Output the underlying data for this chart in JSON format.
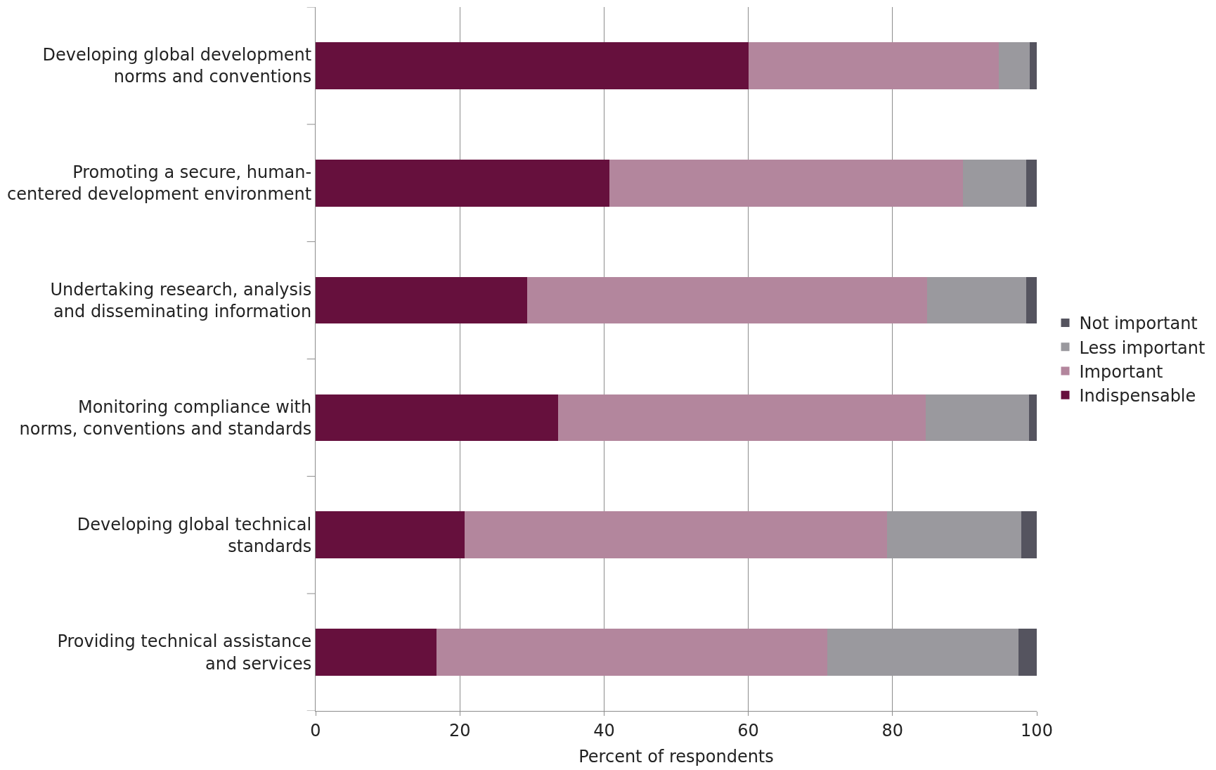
{
  "chart_data": {
    "type": "bar",
    "orientation": "horizontal",
    "stacked": true,
    "xlabel": "Percent of respondents",
    "categories": [
      "Developing global development norms and conventions",
      "Promoting a secure, human-centered development environment",
      "Undertaking research, analysis and disseminating information",
      "Monitoring compliance with norms, conventions and standards",
      "Developing global technical standards",
      "Providing technical assistance and services"
    ],
    "series": [
      {
        "name": "Indispensable",
        "color": "#66103d",
        "values": [
          60,
          40.7,
          29.3,
          33.6,
          20.7,
          16.8
        ]
      },
      {
        "name": "Important",
        "color": "#b3869d",
        "values": [
          34.7,
          49.1,
          55.5,
          51,
          58.5,
          54.2
        ]
      },
      {
        "name": "Less important",
        "color": "#9a999e",
        "values": [
          4.3,
          8.7,
          13.7,
          14.3,
          18.7,
          26.5
        ]
      },
      {
        "name": "Not important",
        "color": "#55545f",
        "values": [
          1,
          1.5,
          1.5,
          1.1,
          2.1,
          2.5
        ]
      }
    ],
    "xlim": [
      0,
      100
    ],
    "xticks": [
      0,
      20,
      40,
      60,
      80,
      100
    ],
    "grid": "x",
    "legend": "right"
  }
}
